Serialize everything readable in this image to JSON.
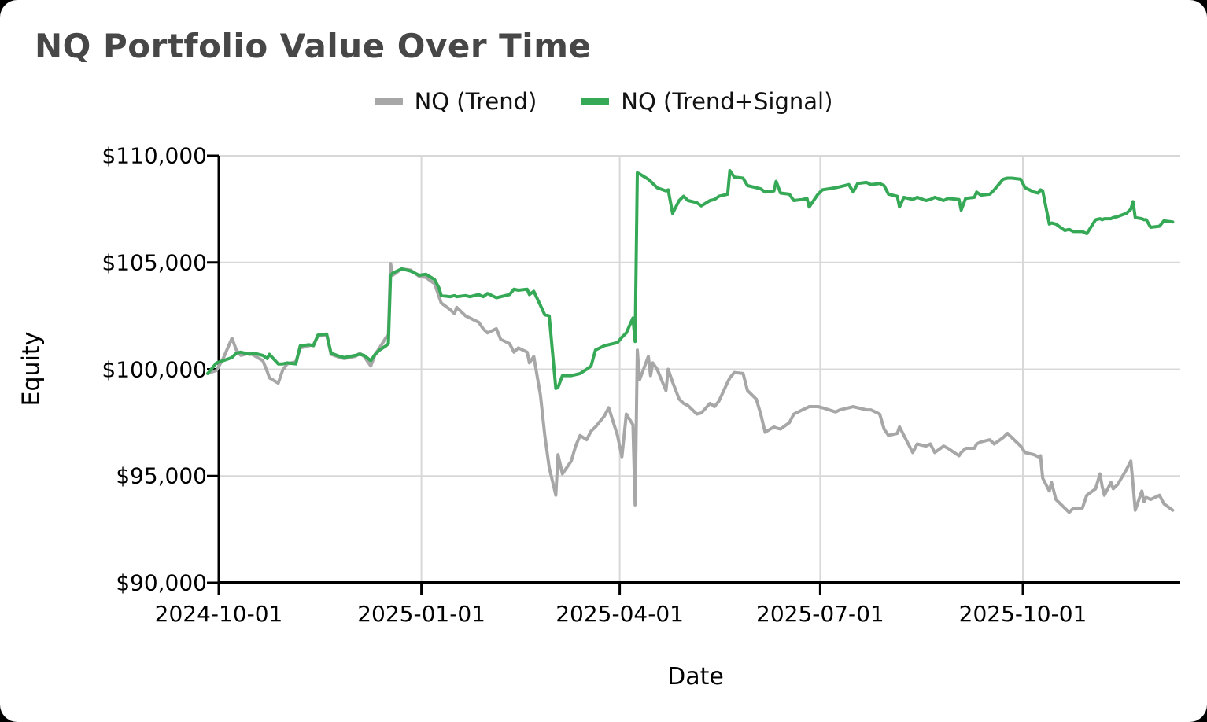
{
  "page": {
    "background": "#000000",
    "card_background": "#ffffff",
    "title_color": "#474747"
  },
  "chart_data": {
    "type": "line",
    "title": "NQ Portfolio Value Over Time",
    "xlabel": "Date",
    "ylabel": "Equity",
    "ylim": [
      90000,
      110000
    ],
    "grid": true,
    "grid_color": "#d8d8d8",
    "axis_color": "#000000",
    "legend_position": "top",
    "y_ticks": [
      {
        "value": 90000,
        "label": "$90,000"
      },
      {
        "value": 95000,
        "label": "$95,000"
      },
      {
        "value": 100000,
        "label": "$100,000"
      },
      {
        "value": 105000,
        "label": "$105,000"
      },
      {
        "value": 110000,
        "label": "$110,000"
      }
    ],
    "x_ticks": [
      {
        "date": "2024-10-01",
        "label": "2024-10-01"
      },
      {
        "date": "2025-01-01",
        "label": "2025-01-01"
      },
      {
        "date": "2025-04-01",
        "label": "2025-04-01"
      },
      {
        "date": "2025-07-01",
        "label": "2025-07-01"
      },
      {
        "date": "2025-10-01",
        "label": "2025-10-01"
      }
    ],
    "x": [
      "2024-09-26",
      "2024-09-30",
      "2024-10-03",
      "2024-10-07",
      "2024-10-09",
      "2024-10-11",
      "2024-10-15",
      "2024-10-17",
      "2024-10-21",
      "2024-10-23",
      "2024-10-24",
      "2024-10-28",
      "2024-10-30",
      "2024-11-01",
      "2024-11-05",
      "2024-11-07",
      "2024-11-11",
      "2024-11-13",
      "2024-11-15",
      "2024-11-19",
      "2024-11-21",
      "2024-11-25",
      "2024-11-27",
      "2024-12-02",
      "2024-12-04",
      "2024-12-06",
      "2024-12-09",
      "2024-12-11",
      "2024-12-13",
      "2024-12-16",
      "2024-12-17",
      "2024-12-18",
      "2024-12-19",
      "2024-12-23",
      "2024-12-27",
      "2024-12-31",
      "2025-01-03",
      "2025-01-07",
      "2025-01-09",
      "2025-01-10",
      "2025-01-14",
      "2025-01-16",
      "2025-01-17",
      "2025-01-21",
      "2025-01-23",
      "2025-01-27",
      "2025-01-29",
      "2025-01-31",
      "2025-02-04",
      "2025-02-06",
      "2025-02-10",
      "2025-02-12",
      "2025-02-14",
      "2025-02-18",
      "2025-02-19",
      "2025-02-21",
      "2025-02-24",
      "2025-02-26",
      "2025-02-28",
      "2025-03-03",
      "2025-03-04",
      "2025-03-06",
      "2025-03-10",
      "2025-03-12",
      "2025-03-14",
      "2025-03-17",
      "2025-03-19",
      "2025-03-21",
      "2025-03-25",
      "2025-03-27",
      "2025-03-31",
      "2025-04-02",
      "2025-04-04",
      "2025-04-07",
      "2025-04-08",
      "2025-04-09",
      "2025-04-10",
      "2025-04-14",
      "2025-04-15",
      "2025-04-16",
      "2025-04-18",
      "2025-04-22",
      "2025-04-23",
      "2025-04-25",
      "2025-04-28",
      "2025-04-30",
      "2025-05-02",
      "2025-05-06",
      "2025-05-08",
      "2025-05-12",
      "2025-05-14",
      "2025-05-16",
      "2025-05-20",
      "2025-05-21",
      "2025-05-23",
      "2025-05-27",
      "2025-05-29",
      "2025-06-02",
      "2025-06-04",
      "2025-06-06",
      "2025-06-10",
      "2025-06-11",
      "2025-06-13",
      "2025-06-17",
      "2025-06-19",
      "2025-06-23",
      "2025-06-25",
      "2025-06-26",
      "2025-06-30",
      "2025-07-02",
      "2025-07-08",
      "2025-07-10",
      "2025-07-14",
      "2025-07-16",
      "2025-07-18",
      "2025-07-22",
      "2025-07-24",
      "2025-07-28",
      "2025-07-30",
      "2025-08-01",
      "2025-08-05",
      "2025-08-06",
      "2025-08-08",
      "2025-08-12",
      "2025-08-14",
      "2025-08-18",
      "2025-08-20",
      "2025-08-22",
      "2025-08-26",
      "2025-08-28",
      "2025-09-02",
      "2025-09-03",
      "2025-09-05",
      "2025-09-09",
      "2025-09-10",
      "2025-09-12",
      "2025-09-16",
      "2025-09-18",
      "2025-09-22",
      "2025-09-24",
      "2025-09-26",
      "2025-09-30",
      "2025-10-02",
      "2025-10-06",
      "2025-10-08",
      "2025-10-09",
      "2025-10-10",
      "2025-10-13",
      "2025-10-14",
      "2025-10-16",
      "2025-10-20",
      "2025-10-22",
      "2025-10-24",
      "2025-10-28",
      "2025-10-30",
      "2025-11-03",
      "2025-11-05",
      "2025-11-06",
      "2025-11-07",
      "2025-11-10",
      "2025-11-11",
      "2025-11-13",
      "2025-11-17",
      "2025-11-19",
      "2025-11-20",
      "2025-11-21",
      "2025-11-24",
      "2025-11-25",
      "2025-11-26",
      "2025-11-28",
      "2025-12-02",
      "2025-12-04",
      "2025-12-08"
    ],
    "series": [
      {
        "name": "NQ (Trend)",
        "color": "#a7a7a7",
        "values": [
          99800,
          99950,
          100500,
          101450,
          100900,
          100650,
          100750,
          100650,
          100400,
          99900,
          99600,
          99350,
          99950,
          100250,
          100350,
          101000,
          101100,
          101150,
          101550,
          101600,
          100700,
          100550,
          100500,
          100600,
          100750,
          100600,
          100150,
          100700,
          101000,
          101500,
          101600,
          104950,
          104400,
          104700,
          104650,
          104350,
          104300,
          104000,
          103400,
          103100,
          102800,
          102600,
          102900,
          102500,
          102400,
          102200,
          101900,
          101700,
          101900,
          101400,
          101200,
          100800,
          101000,
          100800,
          100300,
          100600,
          98800,
          96900,
          95400,
          94100,
          96000,
          95100,
          95700,
          96400,
          96900,
          96700,
          97100,
          97300,
          97800,
          98200,
          96900,
          95900,
          97900,
          97400,
          93650,
          100900,
          99500,
          100600,
          99700,
          100300,
          100000,
          99000,
          100000,
          99400,
          98600,
          98400,
          98300,
          97900,
          97950,
          98400,
          98250,
          98500,
          99400,
          99600,
          99850,
          99800,
          99000,
          98600,
          97900,
          97050,
          97300,
          97250,
          97200,
          97500,
          97900,
          98100,
          98200,
          98250,
          98250,
          98200,
          98000,
          98100,
          98200,
          98250,
          98200,
          98100,
          98100,
          97900,
          97200,
          96900,
          97000,
          97300,
          96900,
          96100,
          96500,
          96400,
          96500,
          96100,
          96400,
          96300,
          95950,
          96100,
          96300,
          96300,
          96500,
          96600,
          96700,
          96500,
          96800,
          97000,
          96800,
          96400,
          96100,
          96000,
          95900,
          95950,
          94900,
          94300,
          94700,
          93900,
          93500,
          93300,
          93500,
          93500,
          94100,
          94400,
          95100,
          94500,
          94100,
          94700,
          94400,
          94600,
          95300,
          95700,
          94600,
          93400,
          94300,
          93800,
          94000,
          93900,
          94100,
          93700,
          93400
        ]
      },
      {
        "name": "NQ (Trend+Signal)",
        "color": "#36a957",
        "values": [
          99800,
          100300,
          100400,
          100550,
          100750,
          100800,
          100700,
          100750,
          100650,
          100500,
          100700,
          100250,
          100250,
          100300,
          100250,
          101100,
          101150,
          101100,
          101600,
          101650,
          100750,
          100600,
          100550,
          100650,
          100700,
          100650,
          100400,
          100700,
          100900,
          101100,
          101200,
          104400,
          104500,
          104700,
          104600,
          104400,
          104450,
          104200,
          103800,
          103450,
          103400,
          103450,
          103400,
          103450,
          103400,
          103500,
          103400,
          103550,
          103350,
          103400,
          103500,
          103750,
          103700,
          103750,
          103500,
          103650,
          103000,
          102550,
          102500,
          99100,
          99150,
          99700,
          99700,
          99750,
          99800,
          100000,
          100150,
          100900,
          101100,
          101150,
          101250,
          101500,
          101700,
          102400,
          101300,
          109200,
          109150,
          108900,
          108800,
          108700,
          108500,
          108350,
          108400,
          107300,
          107900,
          108100,
          107900,
          107800,
          107650,
          107900,
          107950,
          108100,
          108200,
          109300,
          109000,
          108950,
          108600,
          108500,
          108450,
          108300,
          108350,
          108800,
          108250,
          108200,
          107900,
          107950,
          108000,
          107600,
          108200,
          108400,
          108500,
          108550,
          108650,
          108300,
          108700,
          108750,
          108650,
          108700,
          108600,
          108200,
          108100,
          107600,
          108050,
          107950,
          108050,
          107900,
          107950,
          108050,
          107900,
          108000,
          107950,
          107450,
          108000,
          108050,
          108300,
          108150,
          108200,
          108400,
          108900,
          108950,
          108950,
          108900,
          108500,
          108300,
          108250,
          108400,
          108350,
          106800,
          106850,
          106800,
          106500,
          106550,
          106450,
          106450,
          106350,
          107000,
          107050,
          107000,
          107050,
          107050,
          107100,
          107150,
          107300,
          107500,
          107850,
          107100,
          107050,
          107000,
          107000,
          106650,
          106700,
          106950,
          106900
        ]
      }
    ]
  }
}
